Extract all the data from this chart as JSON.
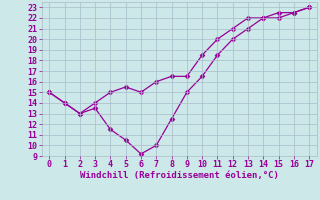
{
  "line1_x": [
    0,
    1,
    2,
    3,
    4,
    5,
    6,
    7,
    8,
    9,
    10,
    11,
    12,
    13,
    14,
    15,
    16,
    17
  ],
  "line1_y": [
    15,
    14,
    13,
    14,
    15,
    15.5,
    15,
    16,
    16.5,
    16.5,
    18.5,
    20,
    21,
    22,
    22,
    22.5,
    22.5,
    23
  ],
  "line2_x": [
    0,
    1,
    2,
    3,
    4,
    5,
    6,
    7,
    8,
    9,
    10,
    11,
    12,
    13,
    14,
    15,
    16,
    17
  ],
  "line2_y": [
    15,
    14,
    13,
    13.5,
    11.5,
    10.5,
    9.2,
    10,
    12.5,
    15,
    16.5,
    18.5,
    20,
    21,
    22,
    22,
    22.5,
    23
  ],
  "line_color": "#990099",
  "marker": "D",
  "marker_size": 2.5,
  "xlabel": "Windchill (Refroidissement éolien,°C)",
  "xlim": [
    -0.5,
    17.5
  ],
  "ylim": [
    9,
    23.5
  ],
  "yticks": [
    9,
    10,
    11,
    12,
    13,
    14,
    15,
    16,
    17,
    18,
    19,
    20,
    21,
    22,
    23
  ],
  "xticks": [
    0,
    1,
    2,
    3,
    4,
    5,
    6,
    7,
    8,
    9,
    10,
    11,
    12,
    13,
    14,
    15,
    16,
    17
  ],
  "bg_color": "#cce8e8",
  "grid_color": "#aabbcc",
  "label_fontsize": 6.5,
  "tick_fontsize": 6
}
